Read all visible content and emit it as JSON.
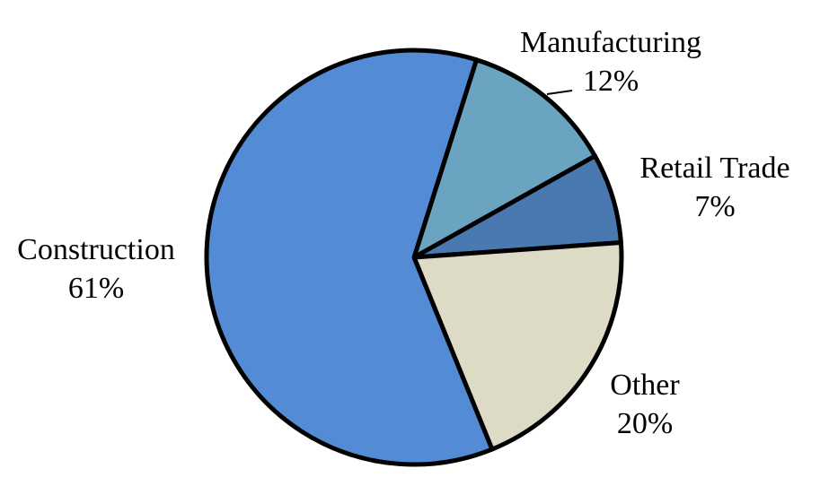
{
  "chart_data": {
    "type": "pie",
    "title": "",
    "slices": [
      {
        "label": "Manufacturing",
        "value": 12,
        "value_label": "12%",
        "color": "#6aa4c0"
      },
      {
        "label": "Retail Trade",
        "value": 7,
        "value_label": "7%",
        "color": "#4a79b1"
      },
      {
        "label": "Other",
        "value": 20,
        "value_label": "20%",
        "color": "#dddac6"
      },
      {
        "label": "Construction",
        "value": 61,
        "value_label": "61%",
        "color": "#538cd5"
      }
    ],
    "start_angle_deg": 17.5,
    "direction": "clockwise",
    "outline_color": "#000000"
  }
}
